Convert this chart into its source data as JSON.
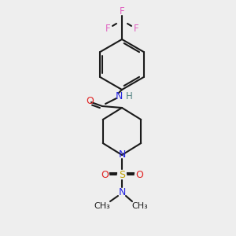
{
  "bg_color": "#eeeeee",
  "bond_color": "#1a1a1a",
  "colors": {
    "F": "#e060c0",
    "N": "#2020e0",
    "O": "#e02020",
    "S": "#c0a000",
    "H": "#508080",
    "C": "#1a1a1a"
  },
  "font_size": 8.5,
  "lw": 1.5
}
